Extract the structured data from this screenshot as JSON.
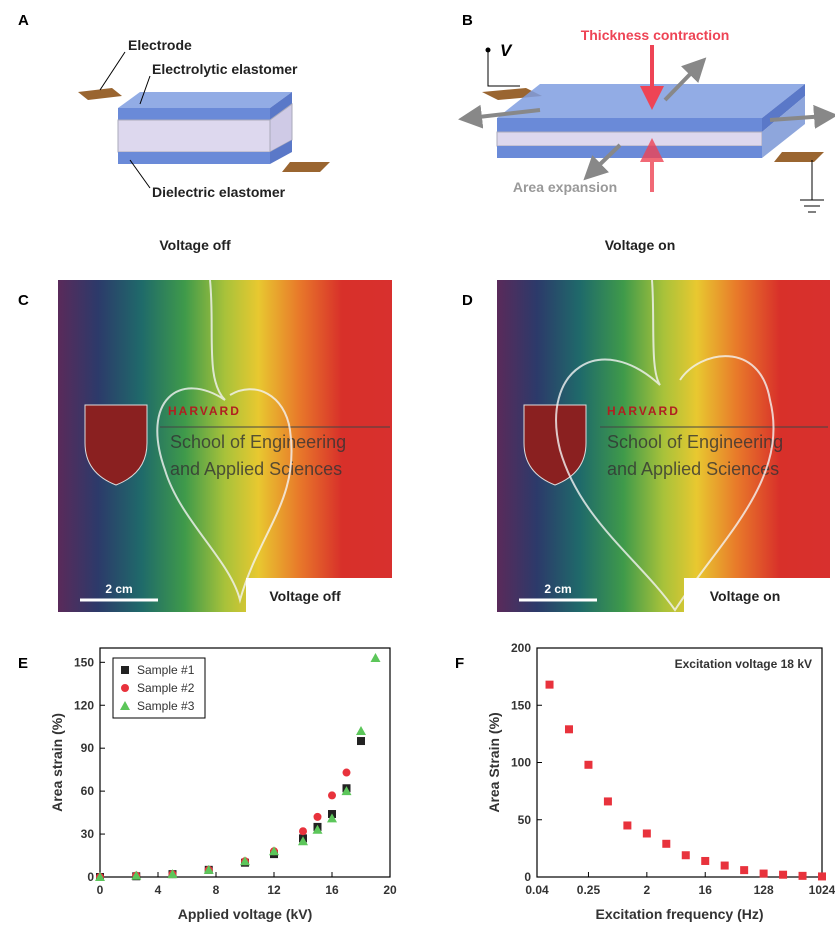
{
  "panels": {
    "a": {
      "letter": "A",
      "electrode": "Electrode",
      "electrolytic": "Electrolytic elastomer",
      "dielectric": "Dielectric elastomer",
      "caption": "Voltage off"
    },
    "b": {
      "letter": "B",
      "voltage": "V",
      "thickness": "Thickness contraction",
      "area": "Area expansion",
      "caption": "Voltage on"
    },
    "c": {
      "letter": "C",
      "harvard": "HARVARD",
      "school1": "School of Engineering",
      "school2": "and Applied Sciences",
      "scale": "2 cm",
      "caption": "Voltage off"
    },
    "d": {
      "letter": "D",
      "harvard": "HARVARD",
      "school1": "School of Engineering",
      "school2": "and Applied Sciences",
      "scale": "2 cm",
      "caption": "Voltage on"
    },
    "e": {
      "letter": "E"
    },
    "f": {
      "letter": "F"
    }
  },
  "chart_data": [
    {
      "type": "scatter",
      "x_label": "Applied voltage (kV)",
      "y_label": "Area strain (%)",
      "xlim": [
        0,
        20
      ],
      "xticks": [
        0,
        4,
        8,
        12,
        16,
        20
      ],
      "ylim": [
        0,
        160
      ],
      "yticks": [
        0,
        30,
        60,
        90,
        120,
        150
      ],
      "legend": "upper left",
      "series": [
        {
          "name": "Sample #1",
          "color": "#222222",
          "marker": "square",
          "x": [
            0,
            2.5,
            5,
            7.5,
            10,
            12,
            14,
            15,
            16,
            17,
            18
          ],
          "values": [
            0,
            0.5,
            2,
            5,
            10,
            16,
            27,
            35,
            44,
            62,
            95
          ]
        },
        {
          "name": "Sample #2",
          "color": "#e8323c",
          "marker": "circle",
          "x": [
            0,
            2.5,
            5,
            7.5,
            10,
            12,
            14,
            15,
            16,
            17
          ],
          "values": [
            0,
            1,
            2,
            5,
            11,
            18,
            32,
            42,
            57,
            73
          ]
        },
        {
          "name": "Sample #3",
          "color": "#5cc65a",
          "marker": "triangle",
          "x": [
            0,
            2.5,
            5,
            7.5,
            10,
            12,
            14,
            15,
            16,
            17,
            18,
            19
          ],
          "values": [
            0,
            1,
            2,
            5,
            11,
            18,
            25,
            33,
            41,
            60,
            102,
            153
          ]
        }
      ]
    },
    {
      "type": "scatter",
      "x_label": "Excitation frequency (Hz)",
      "y_label": "Area Strain (%)",
      "annotation": "Excitation voltage 18 kV",
      "xscale": "log",
      "xlim": [
        0.04,
        1024
      ],
      "xticks": [
        0.04,
        0.25,
        2,
        16,
        128,
        1024
      ],
      "ylim": [
        0,
        200
      ],
      "yticks": [
        0,
        50,
        100,
        150,
        200
      ],
      "color": "#e8323c",
      "marker": "square",
      "x": [
        0.0625,
        0.125,
        0.25,
        0.5,
        1,
        2,
        4,
        8,
        16,
        32,
        64,
        128,
        256,
        512,
        1024
      ],
      "values": [
        168,
        129,
        98,
        66,
        45,
        38,
        29,
        19,
        14,
        10,
        6,
        3,
        2,
        1,
        0.5
      ]
    }
  ]
}
